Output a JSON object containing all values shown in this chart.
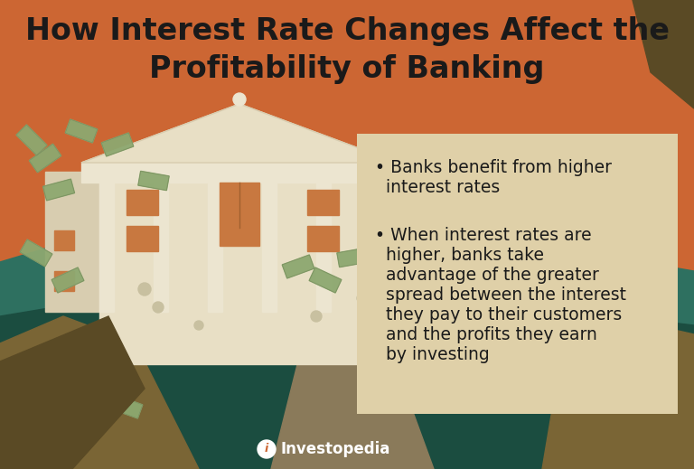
{
  "title_line1": "How Interest Rate Changes Affect the",
  "title_line2": "Profitability of Banking",
  "title_fontsize": 24,
  "title_color": "#1a1a1a",
  "bg_color": "#cc6633",
  "box_color": "#dfd0a8",
  "box_text_color": "#1a1a1a",
  "bullet1_line1": "• Banks benefit from higher",
  "bullet1_line2": "  interest rates",
  "bullet2_line1": "• When interest rates are",
  "bullet2_line2": "  higher, banks take",
  "bullet2_line3": "  advantage of the greater",
  "bullet2_line4": "  spread between the interest",
  "bullet2_line5": "  they pay to their customers",
  "bullet2_line6": "  and the profits they earn",
  "bullet2_line7": "  by investing",
  "bullet_fontsize": 13.5,
  "footer_text": "Investopedia",
  "footer_color": "#ffffff",
  "teal_color": "#2e7060",
  "teal_dark": "#1b4d40",
  "building_body": "#e8dfc5",
  "building_column": "#ece5d0",
  "building_shadow": "#d8cdb0",
  "door_color": "#c87840",
  "window_color": "#c87840",
  "path_color": "#8a7a5a",
  "hill_brown": "#7a6535",
  "bill_color": "#8da870",
  "bill_dark": "#7a9060",
  "coin_color": "#c8c0a0",
  "shadow_dark": "#5a4a25"
}
